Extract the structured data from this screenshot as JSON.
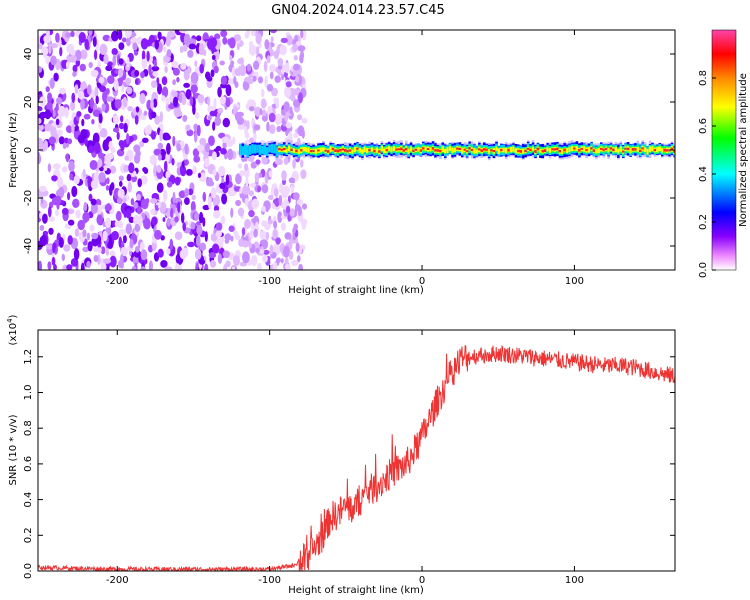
{
  "title": "GN04.2024.014.23.57.C45",
  "colors": {
    "snr_line": "#ee3333",
    "colorbar": [
      "#ffffff",
      "#ee88ff",
      "#8800ff",
      "#0000ff",
      "#00ffff",
      "#00ff00",
      "#ffff00",
      "#ff8800",
      "#ff0000",
      "#ff44aa"
    ]
  },
  "chart_data": [
    {
      "type": "heatmap",
      "xlabel": "Height of straight line (km)",
      "ylabel": "Frequency (Hz)",
      "xlim": [
        -252,
        166
      ],
      "ylim": [
        -50,
        50
      ],
      "xticks": [
        -200,
        -100,
        0,
        100
      ],
      "yticks": [
        -40,
        -20,
        0,
        20,
        40
      ],
      "noise_region_x": [
        -252,
        -85
      ],
      "signal_band": {
        "x_start": -120,
        "x_end": 166,
        "frequency_hz": 0,
        "halfwidth_hz": 3
      },
      "colorbar": {
        "label": "Normalized spectral amplitude",
        "range": [
          0,
          1
        ],
        "ticks": [
          "0.0",
          "0.2",
          "0.4",
          "0.6",
          "0.8"
        ]
      },
      "grid": false
    },
    {
      "type": "line",
      "xlabel": "Height of straight line (km)",
      "ylabel": "SNR (10 * v/v)",
      "y_multiplier": "(x10",
      "y_multiplier_exp": "4",
      "y_multiplier_close": ")",
      "xlim": [
        -252,
        166
      ],
      "ylim": [
        0,
        1.35
      ],
      "xticks": [
        -200,
        -100,
        0,
        100
      ],
      "yticks": [
        "0.0",
        "0.2",
        "0.4",
        "0.6",
        "0.8",
        "1.0",
        "1.2"
      ],
      "series": [
        {
          "x": [
            -252,
            -200,
            -150,
            -100,
            -85,
            -75,
            -65,
            -60,
            -55,
            -50,
            -45,
            -40,
            -35,
            -30,
            -20,
            -10,
            0,
            10,
            20,
            25,
            30,
            40,
            50,
            60,
            70,
            80,
            90,
            100,
            110,
            120,
            130,
            140,
            150,
            160,
            166
          ],
          "y": [
            0.02,
            0.01,
            0.01,
            0.01,
            0.03,
            0.08,
            0.2,
            0.3,
            0.32,
            0.36,
            0.35,
            0.4,
            0.45,
            0.47,
            0.55,
            0.6,
            0.75,
            0.95,
            1.12,
            1.18,
            1.2,
            1.21,
            1.22,
            1.21,
            1.2,
            1.19,
            1.18,
            1.17,
            1.16,
            1.15,
            1.15,
            1.14,
            1.12,
            1.1,
            1.09
          ]
        }
      ],
      "grid": false
    }
  ]
}
